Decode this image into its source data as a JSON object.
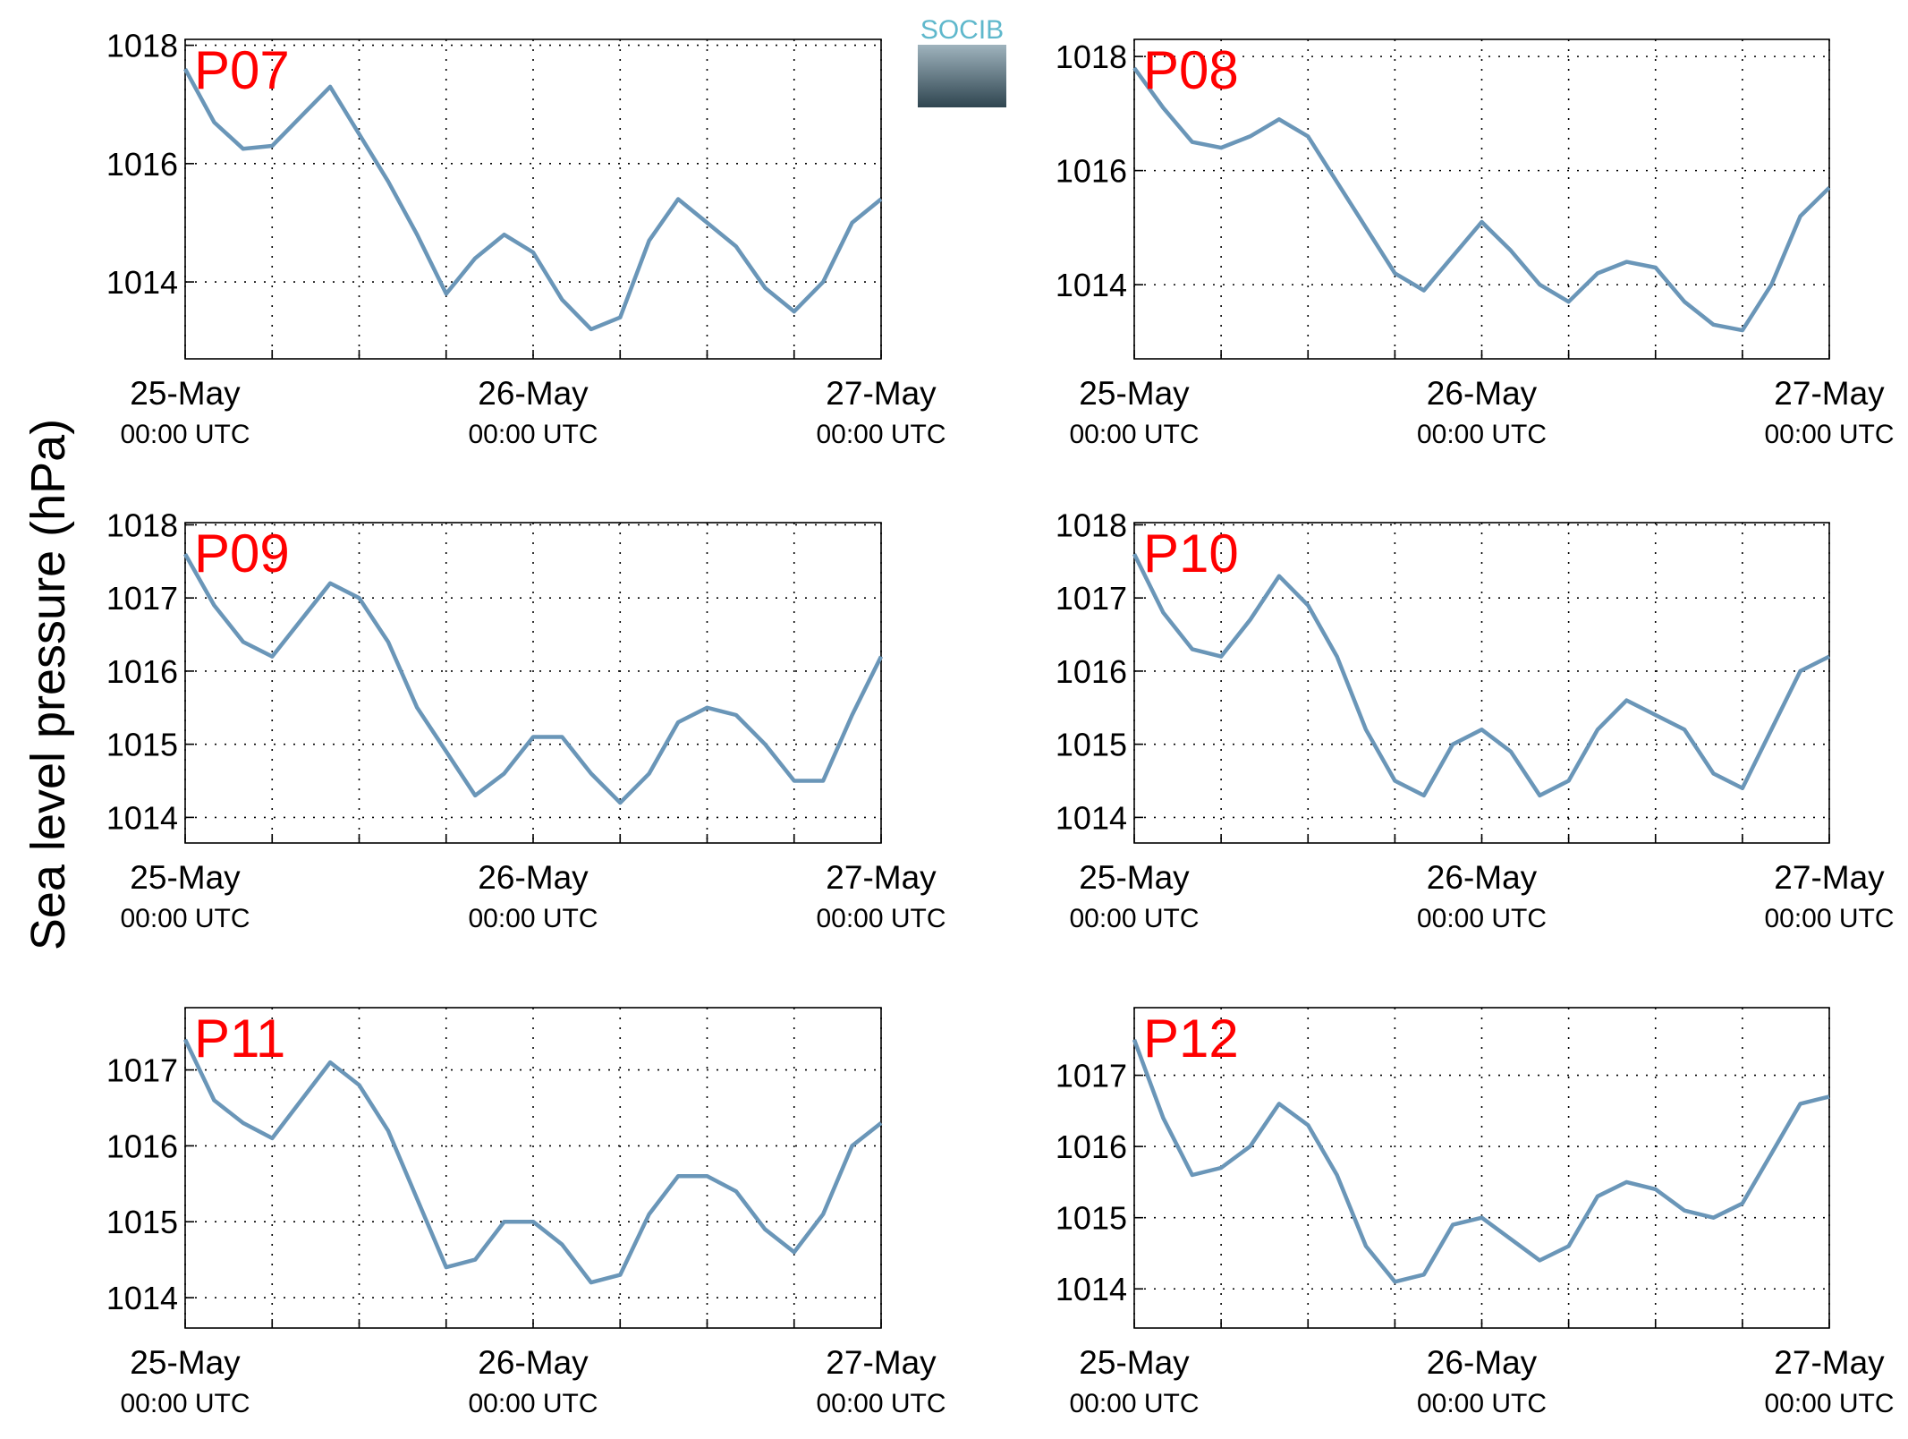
{
  "ylabel": "Sea level pressure (hPa)",
  "logo": "SOCIB",
  "chart_data": [
    {
      "type": "line",
      "title": "P07",
      "x": [
        0,
        2,
        4,
        6,
        8,
        10,
        12,
        14,
        16,
        18,
        20,
        22,
        24,
        26,
        28,
        30,
        32,
        34,
        36,
        38,
        40,
        42,
        44,
        46,
        48
      ],
      "xlim": [
        0,
        48
      ],
      "xticks": [
        {
          "value": 0,
          "label": "25-May",
          "sublabel": "00:00 UTC"
        },
        {
          "value": 24,
          "label": "26-May",
          "sublabel": "00:00 UTC"
        },
        {
          "value": 48,
          "label": "27-May",
          "sublabel": "00:00 UTC"
        }
      ],
      "xgrid": [
        6,
        12,
        18,
        30,
        36,
        42
      ],
      "ylim": [
        1012.7,
        1018.1
      ],
      "yticks": [
        1014,
        1016,
        1018
      ],
      "grid": true,
      "series": [
        {
          "name": "P07",
          "color": "#6a96b8",
          "values": [
            1017.6,
            1016.7,
            1016.25,
            1016.3,
            1016.8,
            1017.3,
            1016.5,
            1015.7,
            1014.8,
            1013.8,
            1014.4,
            1014.8,
            1014.5,
            1013.7,
            1013.2,
            1013.4,
            1014.7,
            1015.4,
            1015.0,
            1014.6,
            1013.9,
            1013.5,
            1014.0,
            1015.0,
            1015.4
          ]
        }
      ]
    },
    {
      "type": "line",
      "title": "P08",
      "x": [
        0,
        2,
        4,
        6,
        8,
        10,
        12,
        14,
        16,
        18,
        20,
        22,
        24,
        26,
        28,
        30,
        32,
        34,
        36,
        38,
        40,
        42,
        44,
        46,
        48
      ],
      "xlim": [
        0,
        48
      ],
      "xticks": [
        {
          "value": 0,
          "label": "25-May",
          "sublabel": "00:00 UTC"
        },
        {
          "value": 24,
          "label": "26-May",
          "sublabel": "00:00 UTC"
        },
        {
          "value": 48,
          "label": "27-May",
          "sublabel": "00:00 UTC"
        }
      ],
      "xgrid": [
        6,
        12,
        18,
        30,
        36,
        42
      ],
      "ylim": [
        1012.7,
        1018.3
      ],
      "yticks": [
        1014,
        1016,
        1018
      ],
      "grid": true,
      "series": [
        {
          "name": "P08",
          "color": "#6a96b8",
          "values": [
            1017.8,
            1017.1,
            1016.5,
            1016.4,
            1016.6,
            1016.9,
            1016.6,
            1015.8,
            1015.0,
            1014.2,
            1013.9,
            1014.5,
            1015.1,
            1014.6,
            1014.0,
            1013.7,
            1014.2,
            1014.4,
            1014.3,
            1013.7,
            1013.3,
            1013.2,
            1014.0,
            1015.2,
            1015.7
          ]
        }
      ]
    },
    {
      "type": "line",
      "title": "P09",
      "x": [
        0,
        2,
        4,
        6,
        8,
        10,
        12,
        14,
        16,
        18,
        20,
        22,
        24,
        26,
        28,
        30,
        32,
        34,
        36,
        38,
        40,
        42,
        44,
        46,
        48
      ],
      "xlim": [
        0,
        48
      ],
      "xticks": [
        {
          "value": 0,
          "label": "25-May",
          "sublabel": "00:00 UTC"
        },
        {
          "value": 24,
          "label": "26-May",
          "sublabel": "00:00 UTC"
        },
        {
          "value": 48,
          "label": "27-May",
          "sublabel": "00:00 UTC"
        }
      ],
      "xgrid": [
        6,
        12,
        18,
        30,
        36,
        42
      ],
      "ylim": [
        1013.65,
        1018.03
      ],
      "yticks": [
        1014,
        1015,
        1016,
        1017,
        1018
      ],
      "grid": true,
      "series": [
        {
          "name": "P09",
          "color": "#6a96b8",
          "values": [
            1017.6,
            1016.9,
            1016.4,
            1016.2,
            1016.7,
            1017.2,
            1017.0,
            1016.4,
            1015.5,
            1014.9,
            1014.3,
            1014.6,
            1015.1,
            1015.1,
            1014.6,
            1014.2,
            1014.6,
            1015.3,
            1015.5,
            1015.4,
            1015.0,
            1014.5,
            1014.5,
            1015.4,
            1016.2
          ]
        }
      ]
    },
    {
      "type": "line",
      "title": "P10",
      "x": [
        0,
        2,
        4,
        6,
        8,
        10,
        12,
        14,
        16,
        18,
        20,
        22,
        24,
        26,
        28,
        30,
        32,
        34,
        36,
        38,
        40,
        42,
        44,
        46,
        48
      ],
      "xlim": [
        0,
        48
      ],
      "xticks": [
        {
          "value": 0,
          "label": "25-May",
          "sublabel": "00:00 UTC"
        },
        {
          "value": 24,
          "label": "26-May",
          "sublabel": "00:00 UTC"
        },
        {
          "value": 48,
          "label": "27-May",
          "sublabel": "00:00 UTC"
        }
      ],
      "xgrid": [
        6,
        12,
        18,
        30,
        36,
        42
      ],
      "ylim": [
        1013.65,
        1018.03
      ],
      "yticks": [
        1014,
        1015,
        1016,
        1017,
        1018
      ],
      "grid": true,
      "series": [
        {
          "name": "P10",
          "color": "#6a96b8",
          "values": [
            1017.6,
            1016.8,
            1016.3,
            1016.2,
            1016.7,
            1017.3,
            1016.9,
            1016.2,
            1015.2,
            1014.5,
            1014.3,
            1015.0,
            1015.2,
            1014.9,
            1014.3,
            1014.5,
            1015.2,
            1015.6,
            1015.4,
            1015.2,
            1014.6,
            1014.4,
            1015.2,
            1016.0,
            1016.2
          ]
        }
      ]
    },
    {
      "type": "line",
      "title": "P11",
      "x": [
        0,
        2,
        4,
        6,
        8,
        10,
        12,
        14,
        16,
        18,
        20,
        22,
        24,
        26,
        28,
        30,
        32,
        34,
        36,
        38,
        40,
        42,
        44,
        46,
        48
      ],
      "xlim": [
        0,
        48
      ],
      "xticks": [
        {
          "value": 0,
          "label": "25-May",
          "sublabel": "00:00 UTC"
        },
        {
          "value": 24,
          "label": "26-May",
          "sublabel": "00:00 UTC"
        },
        {
          "value": 48,
          "label": "27-May",
          "sublabel": "00:00 UTC"
        }
      ],
      "xgrid": [
        6,
        12,
        18,
        30,
        36,
        42
      ],
      "ylim": [
        1013.6,
        1017.82
      ],
      "yticks": [
        1014,
        1015,
        1016,
        1017
      ],
      "grid": true,
      "series": [
        {
          "name": "P11",
          "color": "#6a96b8",
          "values": [
            1017.4,
            1016.6,
            1016.3,
            1016.1,
            1016.6,
            1017.1,
            1016.8,
            1016.2,
            1015.3,
            1014.4,
            1014.5,
            1015.0,
            1015.0,
            1014.7,
            1014.2,
            1014.3,
            1015.1,
            1015.6,
            1015.6,
            1015.4,
            1014.9,
            1014.6,
            1015.1,
            1016.0,
            1016.3
          ]
        }
      ]
    },
    {
      "type": "line",
      "title": "P12",
      "x": [
        0,
        2,
        4,
        6,
        8,
        10,
        12,
        14,
        16,
        18,
        20,
        22,
        24,
        26,
        28,
        30,
        32,
        34,
        36,
        38,
        40,
        42,
        44,
        46,
        48
      ],
      "xlim": [
        0,
        48
      ],
      "xticks": [
        {
          "value": 0,
          "label": "25-May",
          "sublabel": "00:00 UTC"
        },
        {
          "value": 24,
          "label": "26-May",
          "sublabel": "00:00 UTC"
        },
        {
          "value": 48,
          "label": "27-May",
          "sublabel": "00:00 UTC"
        }
      ],
      "xgrid": [
        6,
        12,
        18,
        30,
        36,
        42
      ],
      "ylim": [
        1013.45,
        1017.95
      ],
      "yticks": [
        1014,
        1015,
        1016,
        1017
      ],
      "grid": true,
      "series": [
        {
          "name": "P12",
          "color": "#6a96b8",
          "values": [
            1017.5,
            1016.4,
            1015.6,
            1015.7,
            1016.0,
            1016.6,
            1016.3,
            1015.6,
            1014.6,
            1014.1,
            1014.2,
            1014.9,
            1015.0,
            1014.7,
            1014.4,
            1014.6,
            1015.3,
            1015.5,
            1015.4,
            1015.1,
            1015.0,
            1015.2,
            1015.9,
            1016.6,
            1016.7
          ]
        }
      ]
    }
  ]
}
